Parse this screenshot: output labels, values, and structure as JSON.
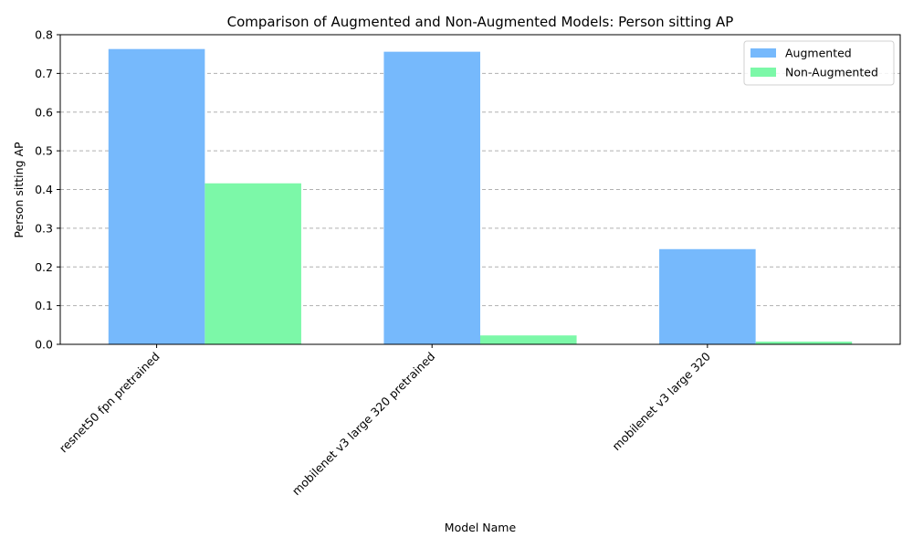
{
  "chart_data": {
    "type": "bar",
    "title": "Comparison of Augmented and Non-Augmented Models: Person sitting AP",
    "xlabel": "Model Name",
    "ylabel": "Person sitting AP",
    "categories": [
      "resnet50 fpn pretrained",
      "mobilenet v3 large 320 pretrained",
      "mobilenet v3 large 320"
    ],
    "series": [
      {
        "name": "Augmented",
        "values": [
          0.763,
          0.756,
          0.246
        ],
        "color": "#76b9fc"
      },
      {
        "name": "Non-Augmented",
        "values": [
          0.416,
          0.023,
          0.007
        ],
        "color": "#7cf8a8"
      }
    ],
    "ylim": [
      0,
      0.8
    ],
    "yticks": [
      "0.0",
      "0.1",
      "0.2",
      "0.3",
      "0.4",
      "0.5",
      "0.6",
      "0.7",
      "0.8"
    ],
    "grid": "y-dashed",
    "legend_position": "top-right"
  }
}
